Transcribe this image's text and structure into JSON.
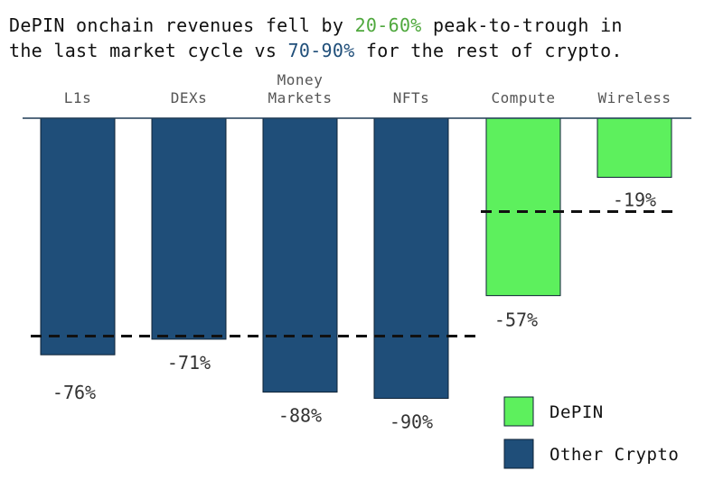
{
  "title": {
    "line1_prefix": "DePIN onchain revenues fell by ",
    "line1_highlight": "20-60%",
    "line1_suffix": " peak-to-trough in",
    "line2_prefix": "the last market cycle vs ",
    "line2_highlight": "70-90%",
    "line2_suffix": " for the rest of crypto."
  },
  "colors": {
    "depin": "#5df05d",
    "other": "#1f4e79",
    "highlight_green": "#4fa83d",
    "highlight_blue": "#1f4e79"
  },
  "chart_data": {
    "type": "bar",
    "categories": [
      "L1s",
      "DEXs",
      "Money Markets",
      "NFTs",
      "Compute",
      "Wireless"
    ],
    "category_lines": [
      [
        "L1s"
      ],
      [
        "DEXs"
      ],
      [
        "Money",
        "Markets"
      ],
      [
        "NFTs"
      ],
      [
        "Compute"
      ],
      [
        "Wireless"
      ]
    ],
    "values": [
      -76,
      -71,
      -88,
      -90,
      -57,
      -19
    ],
    "value_labels": [
      "-76%",
      "-71%",
      "-88%",
      "-90%",
      "-57%",
      "-19%"
    ],
    "groups": [
      "Other Crypto",
      "Other Crypto",
      "Other Crypto",
      "Other Crypto",
      "DePIN",
      "DePIN"
    ],
    "ylim": [
      -100,
      0
    ],
    "reference_lines": [
      {
        "group": "Other Crypto",
        "value": -70
      },
      {
        "group": "DePIN",
        "value": -30
      }
    ],
    "legend": [
      {
        "label": "DePIN",
        "group": "DePIN"
      },
      {
        "label": "Other Crypto",
        "group": "Other Crypto"
      }
    ],
    "legend_position": "bottom-right"
  }
}
